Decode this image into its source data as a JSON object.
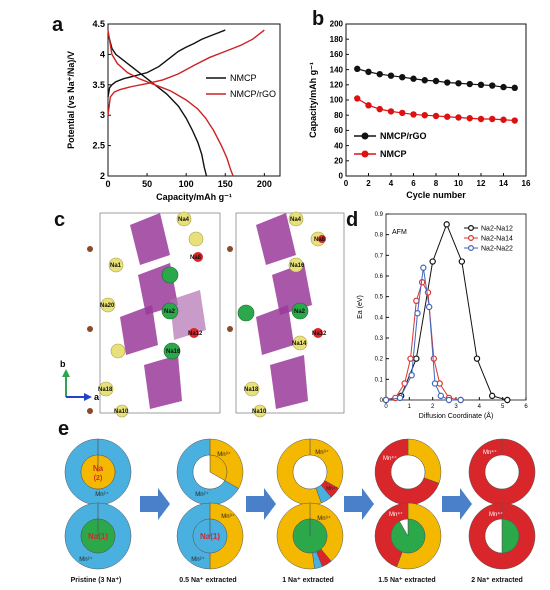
{
  "panels": {
    "a": "a",
    "b": "b",
    "c": "c",
    "d": "d",
    "e": "e"
  },
  "chart_data": [
    {
      "id": "a",
      "type": "line",
      "xlabel": "Capacity/mAh g⁻¹",
      "ylabel": "Potential (vs Na⁺/Na)/V",
      "xlim": [
        0,
        220
      ],
      "ylim": [
        2.0,
        4.5
      ],
      "xticks": [
        "0",
        "50",
        "100",
        "150",
        "200"
      ],
      "yticks": [
        "2",
        "2.5",
        "3",
        "3.5",
        "4",
        "4.5"
      ],
      "legend_position": "center-right",
      "colors": {
        "NMCP": "#111111",
        "NMCP/rGO": "#cc2222"
      },
      "series": [
        {
          "name": "NMCP",
          "branch": "charge",
          "x": [
            0,
            2,
            5,
            10,
            20,
            35,
            50,
            65,
            80,
            90,
            100,
            110,
            120,
            130,
            140,
            150
          ],
          "y": [
            3.3,
            3.45,
            3.5,
            3.55,
            3.6,
            3.65,
            3.7,
            3.8,
            3.95,
            4.05,
            4.12,
            4.18,
            4.25,
            4.3,
            4.35,
            4.4
          ]
        },
        {
          "name": "NMCP",
          "branch": "discharge",
          "x": [
            0,
            5,
            10,
            20,
            30,
            45,
            60,
            75,
            90,
            100,
            108,
            115,
            120,
            123,
            126
          ],
          "y": [
            4.35,
            4.1,
            4.0,
            3.9,
            3.8,
            3.65,
            3.5,
            3.35,
            3.15,
            2.95,
            2.75,
            2.55,
            2.35,
            2.15,
            2.0
          ]
        },
        {
          "name": "NMCP/rGO",
          "branch": "charge",
          "x": [
            0,
            3,
            8,
            15,
            30,
            50,
            70,
            90,
            110,
            130,
            150,
            170,
            185,
            200
          ],
          "y": [
            3.0,
            3.3,
            3.38,
            3.42,
            3.47,
            3.52,
            3.58,
            3.68,
            3.82,
            3.95,
            4.05,
            4.15,
            4.25,
            4.4
          ]
        },
        {
          "name": "NMCP/rGO",
          "branch": "discharge",
          "x": [
            0,
            5,
            12,
            25,
            40,
            60,
            80,
            100,
            115,
            125,
            135,
            145,
            152,
            157,
            160
          ],
          "y": [
            4.4,
            4.0,
            3.85,
            3.7,
            3.6,
            3.5,
            3.4,
            3.25,
            3.1,
            2.95,
            2.75,
            2.5,
            2.3,
            2.1,
            2.0
          ]
        }
      ]
    },
    {
      "id": "b",
      "type": "line",
      "xlabel": "Cycle number",
      "ylabel": "Capacity/mAh g⁻¹",
      "xlim": [
        0,
        16
      ],
      "ylim": [
        0,
        200
      ],
      "xticks": [
        "0",
        "2",
        "4",
        "6",
        "8",
        "10",
        "12",
        "14",
        "16"
      ],
      "yticks": [
        "0",
        "20",
        "40",
        "60",
        "80",
        "100",
        "120",
        "140",
        "160",
        "180",
        "200"
      ],
      "legend_position": "lower-left",
      "series": [
        {
          "name": "NMCP/rGO",
          "color": "#111111",
          "x": [
            1,
            2,
            3,
            4,
            5,
            6,
            7,
            8,
            9,
            10,
            11,
            12,
            13,
            14,
            15
          ],
          "y": [
            141,
            137,
            134,
            132,
            130,
            128,
            126,
            125,
            123,
            122,
            121,
            120,
            119,
            117,
            116
          ]
        },
        {
          "name": "NMCP",
          "color": "#dd1111",
          "x": [
            1,
            2,
            3,
            4,
            5,
            6,
            7,
            8,
            9,
            10,
            11,
            12,
            13,
            14,
            15
          ],
          "y": [
            102,
            93,
            88,
            85,
            83,
            81,
            80,
            79,
            78,
            77,
            76,
            75,
            75,
            74,
            73
          ]
        }
      ]
    },
    {
      "id": "d",
      "type": "line",
      "annotation": "AFM",
      "xlabel": "Diffusion Coordinate (Å)",
      "ylabel": "Ea (eV)",
      "xlim": [
        0,
        6
      ],
      "ylim": [
        0,
        0.9
      ],
      "xticks": [
        "0",
        "1",
        "2",
        "3",
        "4",
        "5",
        "6"
      ],
      "yticks": [
        "0",
        "0.1",
        "0.2",
        "0.3",
        "0.4",
        "0.5",
        "0.6",
        "0.7",
        "0.8",
        "0.9"
      ],
      "legend_position": "top-right",
      "series": [
        {
          "name": "Na2-Na12",
          "color": "#111111",
          "x": [
            0,
            0.65,
            1.3,
            2.0,
            2.6,
            3.25,
            3.9,
            4.55,
            5.2
          ],
          "y": [
            0,
            0.02,
            0.2,
            0.67,
            0.85,
            0.67,
            0.2,
            0.02,
            0
          ]
        },
        {
          "name": "Na2-Na14",
          "color": "#dd3333",
          "x": [
            0,
            0.4,
            0.8,
            1.05,
            1.3,
            1.55,
            1.8,
            2.05,
            2.3,
            2.7,
            3.2
          ],
          "y": [
            0,
            0.01,
            0.08,
            0.2,
            0.48,
            0.57,
            0.52,
            0.2,
            0.08,
            0.01,
            0
          ]
        },
        {
          "name": "Na2-Na22",
          "color": "#4466bb",
          "x": [
            0,
            0.6,
            1.1,
            1.35,
            1.6,
            1.85,
            2.1,
            2.35,
            2.7,
            3.2
          ],
          "y": [
            0,
            0.01,
            0.12,
            0.42,
            0.64,
            0.45,
            0.08,
            0.02,
            0,
            0
          ]
        }
      ]
    }
  ],
  "panel_c": {
    "labels_left": [
      "Na4",
      "Na8",
      "Na20",
      "Na2",
      "Na16",
      "Na18",
      "Na10",
      "Na1",
      "Na12"
    ],
    "labels_right": [
      "Na4",
      "Na8",
      "Na2",
      "Na14",
      "Na18",
      "Na16",
      "Na10",
      "Na12"
    ],
    "axis_b": "b",
    "axis_a": "a"
  },
  "panel_e": {
    "captions": [
      "Pristine (3 Na⁺)",
      "0.5 Na⁺ extracted",
      "1 Na⁺ extracted",
      "1.5 Na⁺ extracted",
      "2 Na⁺ extracted"
    ],
    "top_inner_label": "Na",
    "top_inner_sub": "(2)",
    "bottom_inner_label": "Na(1)",
    "mn_label": "Mn²⁺",
    "mn3_label": "Mn³⁺",
    "mn4_label": "Mn⁴⁺",
    "colors": {
      "blue": "#4ab0e0",
      "yellow": "#f5b800",
      "red": "#d8262b",
      "green": "#2aa84a",
      "arrow": "#4a7fc9"
    }
  }
}
